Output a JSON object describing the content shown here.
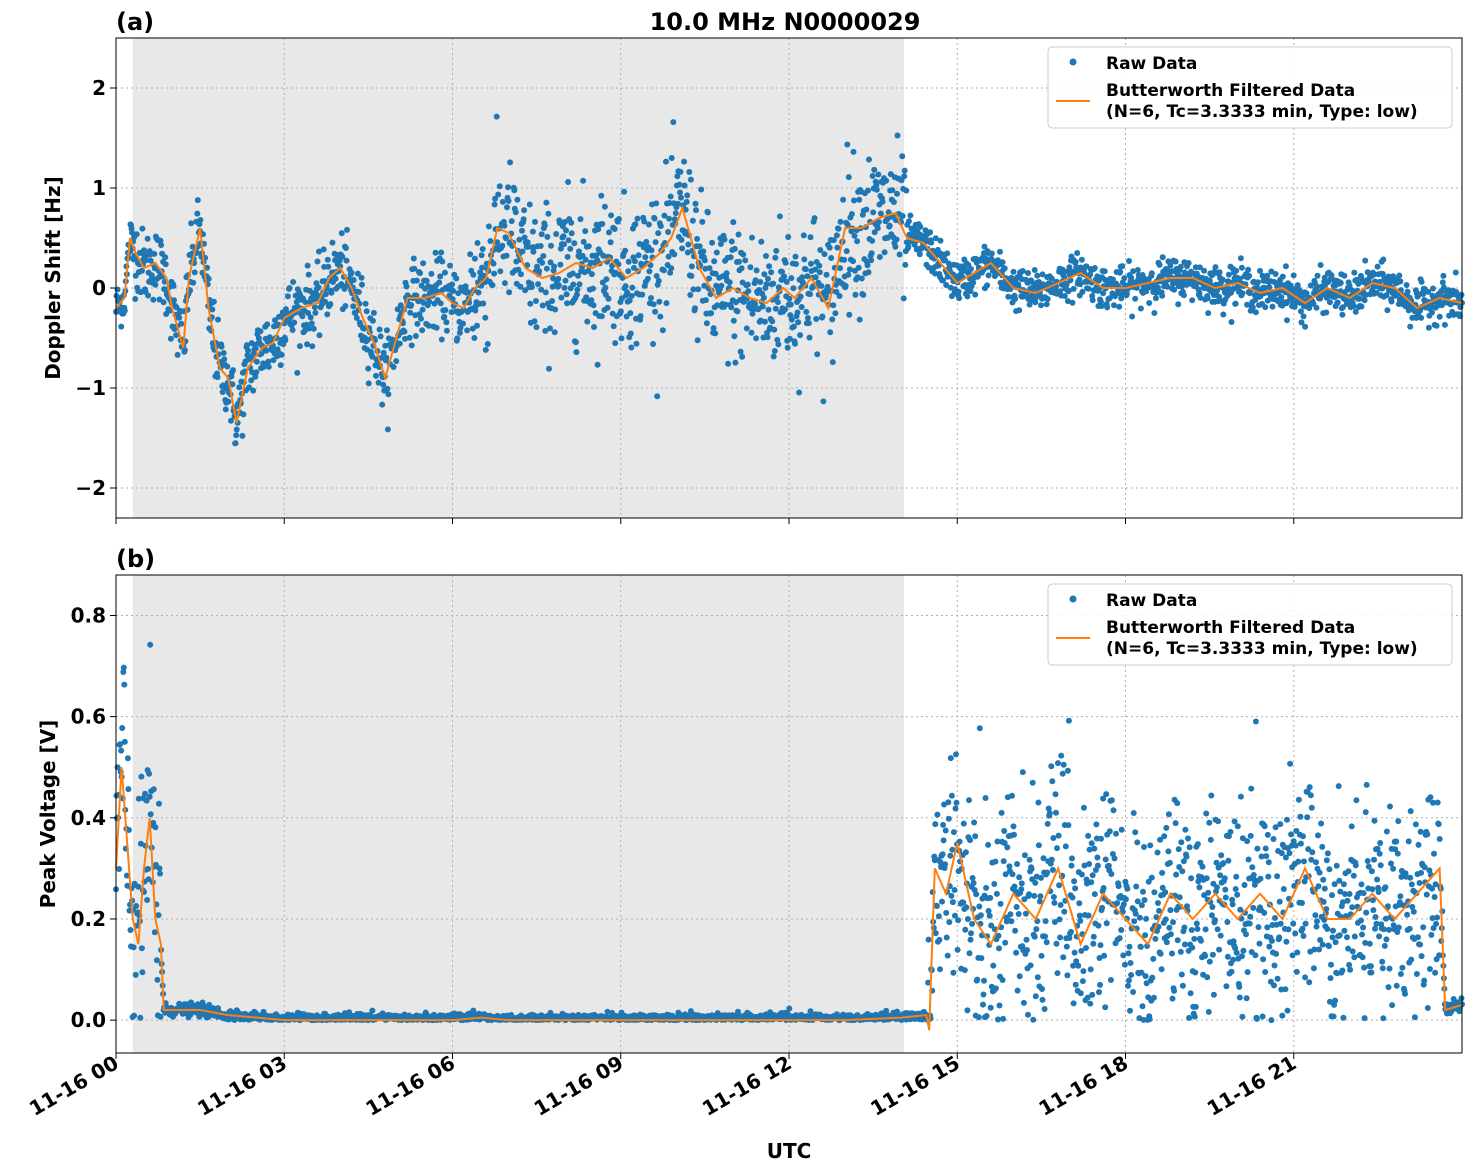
{
  "chart_data": [
    {
      "type": "scatter",
      "panel_label": "(a)",
      "title": "10.0 MHz N0000029",
      "xlabel": "",
      "ylabel": "Doppler Shift [Hz]",
      "xlim_hours": [
        0,
        24
      ],
      "ylim": [
        -2.3,
        2.5
      ],
      "yticks": [
        -2,
        -1,
        0,
        1,
        2
      ],
      "ytick_labels": [
        "−2",
        "−1",
        "0",
        "1",
        "2"
      ],
      "grid": true,
      "legend_position": "upper right",
      "shaded_interval_hours": [
        0.3,
        14.05
      ],
      "colors": {
        "raw": "#1f77b4",
        "filtered": "#ff7f0e",
        "shade": "#e8e8e8"
      },
      "series": [
        {
          "name": "Raw Data",
          "style": "dots"
        },
        {
          "name": "Butterworth Filtered Data",
          "name_line2": "(N=6, Tc=3.3333 min, Type: low)",
          "style": "line"
        }
      ],
      "filtered_x_hours": [
        0.0,
        0.15,
        0.25,
        0.35,
        0.5,
        0.7,
        0.9,
        1.0,
        1.2,
        1.3,
        1.5,
        1.65,
        1.85,
        2.0,
        2.15,
        2.35,
        2.6,
        2.8,
        3.0,
        3.3,
        3.6,
        3.8,
        4.0,
        4.2,
        4.4,
        4.6,
        4.8,
        5.0,
        5.2,
        5.5,
        5.8,
        6.0,
        6.2,
        6.4,
        6.6,
        6.8,
        7.0,
        7.3,
        7.6,
        7.9,
        8.2,
        8.5,
        8.8,
        9.1,
        9.4,
        9.7,
        9.9,
        10.1,
        10.4,
        10.7,
        11.0,
        11.3,
        11.6,
        11.9,
        12.1,
        12.4,
        12.7,
        13.0,
        13.3,
        13.6,
        13.9,
        14.1,
        14.4,
        14.7,
        15.0,
        15.3,
        15.6,
        16.0,
        16.4,
        16.8,
        17.2,
        17.6,
        18.0,
        18.4,
        18.8,
        19.2,
        19.6,
        20.0,
        20.4,
        20.8,
        21.2,
        21.6,
        22.0,
        22.4,
        22.8,
        23.2,
        23.6,
        24.0
      ],
      "filtered_y": [
        -0.2,
        -0.1,
        0.5,
        0.35,
        0.2,
        0.25,
        0.1,
        -0.2,
        -0.6,
        0.1,
        0.6,
        -0.2,
        -0.8,
        -0.9,
        -1.35,
        -0.8,
        -0.6,
        -0.55,
        -0.3,
        -0.2,
        -0.15,
        0.1,
        0.2,
        0.0,
        -0.3,
        -0.55,
        -0.9,
        -0.5,
        -0.1,
        -0.1,
        -0.05,
        -0.15,
        -0.2,
        0.0,
        0.1,
        0.6,
        0.55,
        0.2,
        0.1,
        0.15,
        0.25,
        0.2,
        0.3,
        0.1,
        0.2,
        0.35,
        0.5,
        0.8,
        0.2,
        -0.1,
        0.0,
        -0.1,
        -0.15,
        0.0,
        -0.1,
        0.1,
        -0.2,
        0.6,
        0.6,
        0.7,
        0.75,
        0.5,
        0.45,
        0.25,
        0.05,
        0.15,
        0.25,
        0.0,
        -0.05,
        0.05,
        0.15,
        0.0,
        0.0,
        0.05,
        0.1,
        0.1,
        0.0,
        0.05,
        -0.05,
        0.0,
        -0.15,
        0.0,
        -0.1,
        0.05,
        0.0,
        -0.2,
        -0.1,
        -0.15
      ]
    },
    {
      "type": "scatter",
      "panel_label": "(b)",
      "title": "",
      "xlabel": "UTC",
      "ylabel": "Peak Voltage [V]",
      "xlim_hours": [
        0,
        24
      ],
      "ylim": [
        -0.065,
        0.88
      ],
      "yticks": [
        0.0,
        0.2,
        0.4,
        0.6,
        0.8
      ],
      "ytick_labels": [
        "0.0",
        "0.2",
        "0.4",
        "0.6",
        "0.8"
      ],
      "xticks_hours": [
        0,
        3,
        6,
        9,
        12,
        15,
        18,
        21
      ],
      "xtick_labels": [
        "11-16 00",
        "11-16 03",
        "11-16 06",
        "11-16 09",
        "11-16 12",
        "11-16 15",
        "11-16 18",
        "11-16 21"
      ],
      "grid": true,
      "legend_position": "upper right",
      "shaded_interval_hours": [
        0.3,
        14.05
      ],
      "colors": {
        "raw": "#1f77b4",
        "filtered": "#ff7f0e",
        "shade": "#e8e8e8"
      },
      "series": [
        {
          "name": "Raw Data",
          "style": "dots"
        },
        {
          "name": "Butterworth Filtered Data",
          "name_line2": "(N=6, Tc=3.3333 min, Type: low)",
          "style": "line"
        }
      ],
      "filtered_x_hours": [
        0.0,
        0.1,
        0.2,
        0.3,
        0.4,
        0.5,
        0.6,
        0.7,
        0.8,
        0.85,
        1.0,
        1.5,
        2.0,
        3.0,
        4.0,
        5.0,
        6.0,
        6.5,
        7.0,
        8.0,
        9.0,
        10.0,
        11.0,
        12.0,
        13.0,
        14.0,
        14.45,
        14.5,
        14.6,
        14.8,
        15.0,
        15.3,
        15.6,
        16.0,
        16.4,
        16.8,
        17.2,
        17.6,
        18.0,
        18.4,
        18.8,
        19.2,
        19.6,
        20.0,
        20.4,
        20.8,
        21.2,
        21.6,
        22.0,
        22.4,
        22.8,
        23.2,
        23.6,
        23.7,
        24.0
      ],
      "filtered_y": [
        0.3,
        0.5,
        0.35,
        0.2,
        0.15,
        0.3,
        0.4,
        0.2,
        0.15,
        0.02,
        0.02,
        0.02,
        0.01,
        0.0,
        0.0,
        0.0,
        0.0,
        0.005,
        0.0,
        0.0,
        0.0,
        0.0,
        0.0,
        0.0,
        0.0,
        0.005,
        0.01,
        -0.02,
        0.3,
        0.25,
        0.35,
        0.2,
        0.15,
        0.25,
        0.2,
        0.3,
        0.15,
        0.25,
        0.2,
        0.15,
        0.25,
        0.2,
        0.25,
        0.2,
        0.25,
        0.2,
        0.3,
        0.2,
        0.2,
        0.25,
        0.2,
        0.25,
        0.3,
        0.02,
        0.03
      ]
    }
  ]
}
